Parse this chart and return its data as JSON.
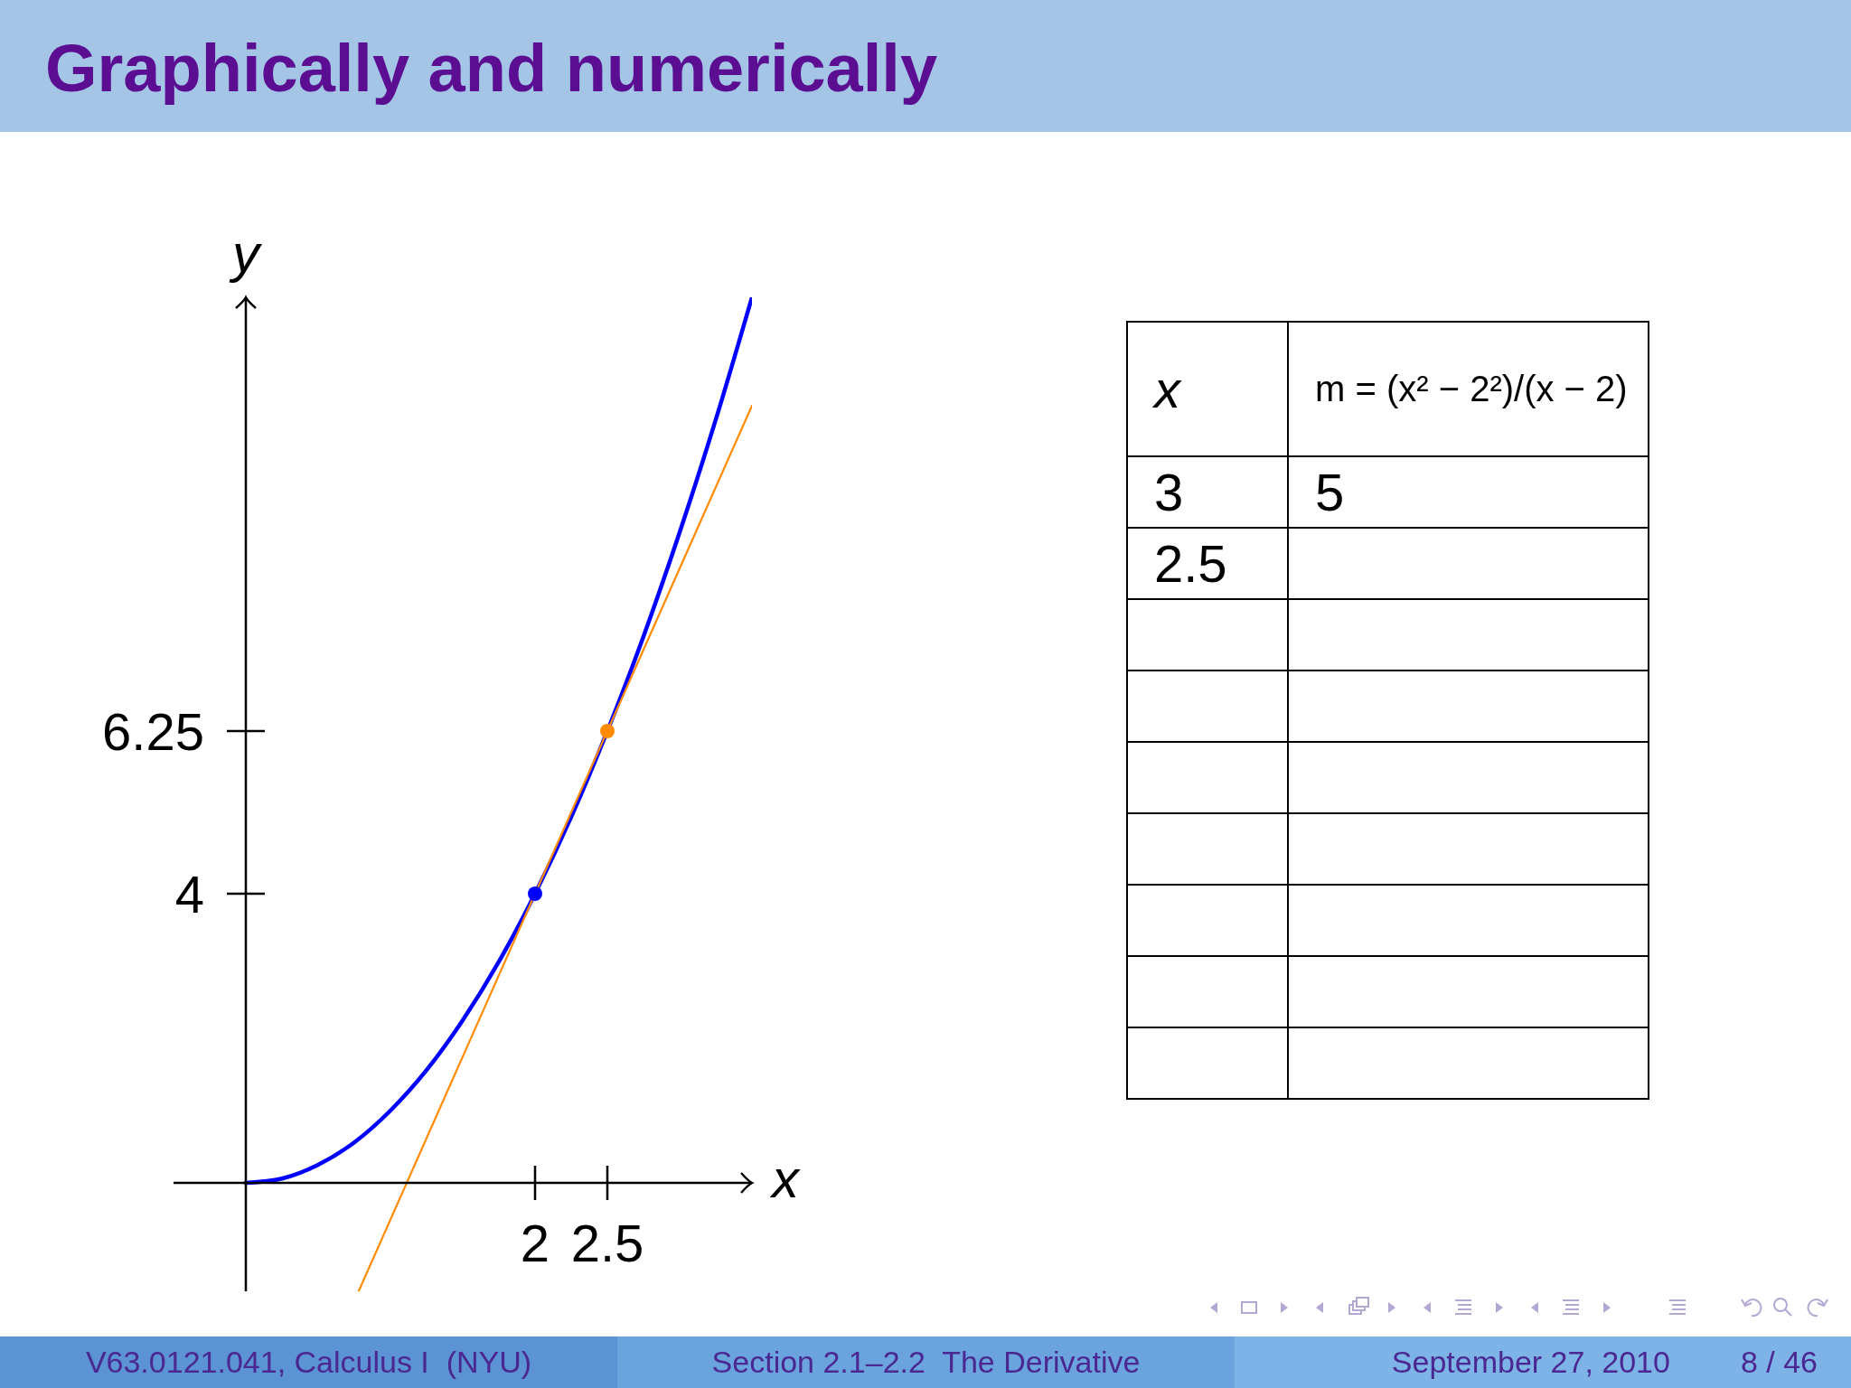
{
  "chart_data": [
    {
      "type": "line",
      "title": "Graphically and numerically",
      "xlabel": "x",
      "ylabel": "y",
      "xlim": [
        -0.5,
        3.5
      ],
      "ylim": [
        -1.5,
        12.25
      ],
      "xticks": [
        2,
        2.5
      ],
      "yticks": [
        4,
        6.25
      ],
      "series": [
        {
          "color": "#0000ff",
          "x": [
            0,
            0.25,
            0.5,
            0.75,
            1,
            1.25,
            1.5,
            1.75,
            2,
            2.25,
            2.5,
            2.75,
            3,
            3.25,
            3.5
          ],
          "values": [
            0,
            0.06,
            0.25,
            0.56,
            1,
            1.56,
            2.25,
            3.06,
            4,
            5.06,
            6.25,
            7.56,
            9,
            10.56,
            12.25
          ]
        },
        {
          "color": "#ff8c00",
          "x": [
            0.78,
            2,
            2.5,
            3.5
          ],
          "values": [
            -1.5,
            4,
            6.25,
            10.75
          ]
        },
        {
          "type": "scatter",
          "marker": "circle",
          "colors": [
            "#0000ff",
            "#ff8c00"
          ],
          "x": [
            2,
            2.5
          ],
          "values": [
            4,
            6.25
          ]
        }
      ],
      "annotations": [
        "V63.0121.041, Calculus I  (NYU)",
        "Section 2.1–2.2  The Derivative",
        "September 27, 2010",
        "8 / 46"
      ]
    },
    {
      "type": "other",
      "xlabel": "x",
      "ylabel": "m = (x² − 2²)/(x − 2)",
      "categories": [
        "3",
        "2.5",
        null,
        null,
        null,
        null,
        null,
        null,
        null
      ],
      "values": [
        5,
        null,
        null,
        null,
        null,
        null,
        null,
        null,
        null
      ],
      "data_labels": true
    }
  ]
}
